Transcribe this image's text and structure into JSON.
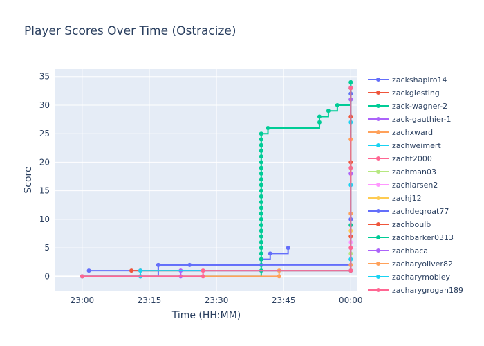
{
  "chart_data": {
    "type": "line",
    "line_shape": "step",
    "title": "Player Scores Over Time (Ostracize)",
    "xlabel": "Time (HH:MM)",
    "ylabel": "Score",
    "x_ticks": [
      "23:00",
      "23:15",
      "23:30",
      "23:45",
      "00:00"
    ],
    "x_tick_minutes": [
      0,
      15,
      30,
      45,
      60
    ],
    "xlim_minutes": [
      -6,
      61.5
    ],
    "y_ticks": [
      0,
      5,
      10,
      15,
      20,
      25,
      30,
      35
    ],
    "ylim": [
      -2.5,
      36.3
    ],
    "grid": true,
    "legend_placement": "right",
    "plot_bg": "#e5ecf6",
    "series": [
      {
        "name": "zackshapiro14",
        "color": "#636efa",
        "points": [
          [
            1.5,
            1
          ],
          [
            17,
            2
          ],
          [
            24,
            2
          ],
          [
            40,
            3
          ],
          [
            42,
            4
          ],
          [
            46,
            5
          ]
        ]
      },
      {
        "name": "zackgiesting",
        "color": "#ef553b",
        "points": [
          [
            13,
            1
          ],
          [
            60,
            1
          ],
          [
            60,
            33
          ]
        ]
      },
      {
        "name": "zack-wagner-2",
        "color": "#00cc96",
        "points": [
          [
            0,
            0
          ],
          [
            13,
            0
          ],
          [
            40,
            1
          ],
          [
            40,
            2
          ],
          [
            40,
            3
          ],
          [
            40,
            4
          ],
          [
            40,
            5
          ],
          [
            40,
            6
          ],
          [
            40,
            7
          ],
          [
            40,
            8
          ],
          [
            40,
            9
          ],
          [
            40,
            10
          ],
          [
            40,
            11
          ],
          [
            40,
            12
          ],
          [
            40,
            13
          ],
          [
            40,
            14
          ],
          [
            40,
            15
          ],
          [
            40,
            16
          ],
          [
            40,
            17
          ],
          [
            40,
            18
          ],
          [
            40,
            19
          ],
          [
            40,
            20
          ],
          [
            40,
            21
          ],
          [
            40,
            22
          ],
          [
            40,
            23
          ],
          [
            40,
            24
          ],
          [
            40,
            25
          ],
          [
            41.5,
            26
          ],
          [
            53,
            27
          ],
          [
            53,
            28
          ],
          [
            55,
            29
          ],
          [
            57,
            30
          ],
          [
            60,
            31
          ],
          [
            60,
            32
          ],
          [
            60,
            33
          ],
          [
            60,
            34
          ]
        ]
      },
      {
        "name": "zack-gauthier-1",
        "color": "#ab63fa",
        "points": [
          [
            60,
            10
          ],
          [
            60,
            18
          ],
          [
            60,
            31
          ]
        ]
      },
      {
        "name": "zachxward",
        "color": "#ffa15a",
        "points": [
          [
            60,
            2
          ],
          [
            60,
            11
          ],
          [
            60,
            24
          ]
        ]
      },
      {
        "name": "zachweimert",
        "color": "#19d3f3",
        "points": [
          [
            60,
            3
          ],
          [
            60,
            16
          ],
          [
            60,
            27
          ]
        ]
      },
      {
        "name": "zacht2000",
        "color": "#ff6692",
        "points": [
          [
            60,
            5
          ],
          [
            60,
            9
          ],
          [
            60,
            19
          ],
          [
            60,
            33
          ]
        ]
      },
      {
        "name": "zachman03",
        "color": "#b6e880",
        "points": [
          [
            60,
            4
          ]
        ]
      },
      {
        "name": "zachlarsen2",
        "color": "#ff97ff",
        "points": [
          [
            60,
            6
          ]
        ]
      },
      {
        "name": "zachj12",
        "color": "#fecb52",
        "points": [
          [
            60,
            7
          ],
          [
            60,
            8
          ]
        ]
      },
      {
        "name": "zachdegroat77",
        "color": "#636efa",
        "points": [
          [
            0,
            0
          ],
          [
            13,
            0
          ],
          [
            17,
            2
          ],
          [
            60,
            2
          ],
          [
            60,
            10
          ],
          [
            60,
            32
          ]
        ]
      },
      {
        "name": "zachboulb",
        "color": "#ef553b",
        "points": [
          [
            11,
            1
          ],
          [
            60,
            1
          ],
          [
            60,
            7
          ],
          [
            60,
            20
          ],
          [
            60,
            28
          ]
        ]
      },
      {
        "name": "zachbarker0313",
        "color": "#00cc96",
        "points": [
          [
            60,
            9
          ],
          [
            60,
            34
          ]
        ]
      },
      {
        "name": "zachbaca",
        "color": "#ab63fa",
        "points": [
          [
            0,
            0
          ],
          [
            22,
            0
          ],
          [
            22,
            1
          ],
          [
            60,
            1
          ],
          [
            60,
            18
          ]
        ]
      },
      {
        "name": "zacharyoliver82",
        "color": "#ffa15a",
        "points": [
          [
            0,
            0
          ],
          [
            44,
            0
          ],
          [
            44,
            1
          ],
          [
            60,
            1
          ],
          [
            60,
            2
          ],
          [
            60,
            24
          ]
        ]
      },
      {
        "name": "zacharymobley",
        "color": "#19d3f3",
        "points": [
          [
            0,
            0
          ],
          [
            13,
            0
          ],
          [
            13,
            1
          ],
          [
            60,
            1
          ],
          [
            60,
            3
          ],
          [
            60,
            16
          ]
        ]
      },
      {
        "name": "zacharygrogan189",
        "color": "#ff6692",
        "points": [
          [
            0,
            0
          ],
          [
            27,
            0
          ],
          [
            27,
            1
          ],
          [
            60,
            1
          ],
          [
            60,
            5
          ],
          [
            60,
            33
          ]
        ]
      }
    ]
  }
}
